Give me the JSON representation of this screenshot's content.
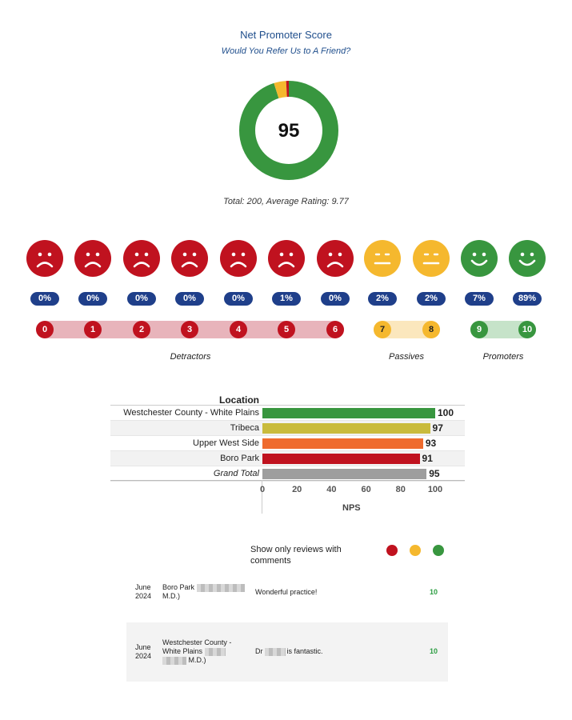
{
  "header": {
    "title": "Net Promoter Score",
    "subtitle": "Would You Refer Us to A Friend?"
  },
  "donut": {
    "score": "95",
    "total_text": "Total: 200, Average Rating: 9.77",
    "segments": [
      {
        "group": "promoters",
        "percent": 96,
        "color": "#38963f"
      },
      {
        "group": "passives",
        "percent": 4,
        "color": "#f5b82e"
      },
      {
        "group": "detractors",
        "percent": 1,
        "color": "#c0121f"
      }
    ]
  },
  "ratings": [
    {
      "score": "0",
      "pct": "0%",
      "mood": "sad"
    },
    {
      "score": "1",
      "pct": "0%",
      "mood": "sad"
    },
    {
      "score": "2",
      "pct": "0%",
      "mood": "sad"
    },
    {
      "score": "3",
      "pct": "0%",
      "mood": "sad"
    },
    {
      "score": "4",
      "pct": "0%",
      "mood": "sad"
    },
    {
      "score": "5",
      "pct": "1%",
      "mood": "sad"
    },
    {
      "score": "6",
      "pct": "0%",
      "mood": "sad"
    },
    {
      "score": "7",
      "pct": "2%",
      "mood": "neutral"
    },
    {
      "score": "8",
      "pct": "2%",
      "mood": "neutral"
    },
    {
      "score": "9",
      "pct": "7%",
      "mood": "happy"
    },
    {
      "score": "10",
      "pct": "89%",
      "mood": "happy"
    }
  ],
  "groups": {
    "detractors": "Detractors",
    "passives": "Passives",
    "promoters": "Promoters"
  },
  "colors": {
    "detractor": "#c0121f",
    "passive": "#f5b82e",
    "promoter": "#38963f",
    "pill": "#1f3f8a"
  },
  "chart_data": {
    "type": "bar",
    "orientation": "horizontal",
    "title": "Location",
    "xlabel": "NPS",
    "categories": [
      "Westchester County - White Plains",
      "Tribeca",
      "Upper West Side",
      "Boro Park",
      "Grand Total"
    ],
    "values": [
      100,
      97,
      93,
      91,
      95
    ],
    "colors": [
      "#38963f",
      "#c9bb3c",
      "#ef6b2e",
      "#c0121f",
      "#9e9e9e"
    ],
    "xlim": [
      0,
      100
    ],
    "xticks": [
      "0",
      "20",
      "40",
      "60",
      "80",
      "100"
    ]
  },
  "filter": {
    "label": "Show only reviews with comments",
    "dots": [
      {
        "name": "detractors",
        "color": "#c0121f"
      },
      {
        "name": "passives",
        "color": "#f5b82e"
      },
      {
        "name": "promoters",
        "color": "#38963f"
      }
    ]
  },
  "reviews": [
    {
      "month": "June",
      "year": "2024",
      "loc_line1": "Boro Park",
      "loc_line2": "M.D.)",
      "comment_pre": "Wonderful practice!",
      "comment_post": "",
      "score": "10"
    },
    {
      "month": "June",
      "year": "2024",
      "loc_line1": "Westchester County -",
      "loc_line2": "White Plains",
      "loc_line3": "M.D.)",
      "comment_pre": "Dr",
      "comment_post": "is fantastic.",
      "score": "10"
    }
  ]
}
